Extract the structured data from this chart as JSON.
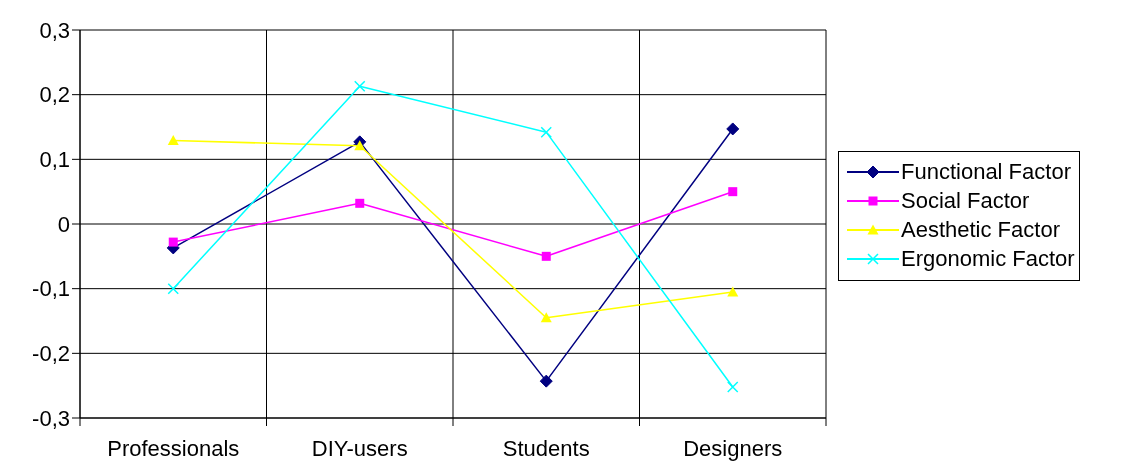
{
  "chart_data": {
    "type": "line",
    "categories": [
      "Professionals",
      "DIY-users",
      "Students",
      "Designers"
    ],
    "series": [
      {
        "name": "Functional Factor",
        "color": "#000080",
        "marker": "diamond",
        "values": [
          -0.037,
          0.127,
          -0.243,
          0.147
        ]
      },
      {
        "name": "Social Factor",
        "color": "#ff00ff",
        "marker": "square",
        "values": [
          -0.028,
          0.032,
          -0.05,
          0.05
        ]
      },
      {
        "name": "Aesthetic Factor",
        "color": "#ffff00",
        "marker": "triangle",
        "values": [
          0.129,
          0.121,
          -0.145,
          -0.105
        ]
      },
      {
        "name": "Ergonomic Factor",
        "color": "#00ffff",
        "marker": "cross",
        "values": [
          -0.1,
          0.213,
          0.142,
          -0.252
        ]
      }
    ],
    "ylim": [
      -0.3,
      0.3
    ],
    "yticks": [
      {
        "value": -0.3,
        "label": "-0,3"
      },
      {
        "value": -0.2,
        "label": "-0,2"
      },
      {
        "value": -0.1,
        "label": "-0,1"
      },
      0,
      {
        "value": 0.1,
        "label": "0,1"
      },
      {
        "value": 0.2,
        "label": "0,2"
      },
      {
        "value": 0.3,
        "label": "0,3"
      }
    ],
    "grid": true,
    "legend": "right",
    "line_style": "solid"
  }
}
